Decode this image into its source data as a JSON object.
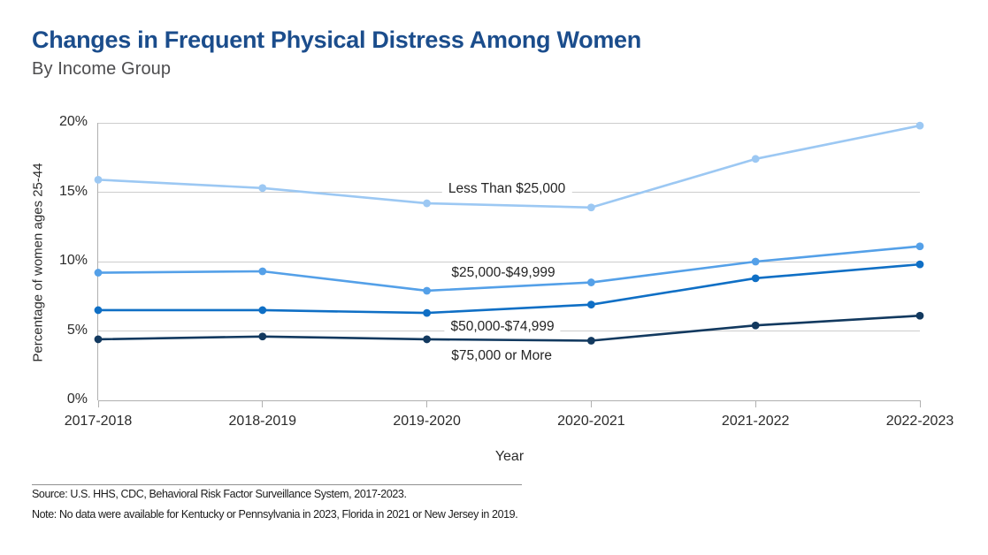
{
  "header": {
    "title": "Changes in Frequent Physical Distress Among Women",
    "subtitle": "By Income Group"
  },
  "chart_data": {
    "type": "line",
    "title": "Changes in Frequent Physical Distress Among Women",
    "subtitle": "By Income Group",
    "categories": [
      "2017-2018",
      "2018-2019",
      "2019-2020",
      "2020-2021",
      "2021-2022",
      "2022-2023"
    ],
    "series": [
      {
        "name": "Less Than $25,000",
        "color": "#9cc8f3",
        "values": [
          15.9,
          15.3,
          14.2,
          13.9,
          17.4,
          19.8
        ]
      },
      {
        "name": "$25,000-$49,999",
        "color": "#54a0e8",
        "values": [
          9.2,
          9.3,
          7.9,
          8.5,
          10.0,
          11.1
        ]
      },
      {
        "name": "$50,000-$74,999",
        "color": "#0f6fc5",
        "values": [
          6.5,
          6.5,
          6.3,
          6.9,
          8.8,
          9.8
        ]
      },
      {
        "name": "$75,000 or More",
        "color": "#12395f",
        "values": [
          4.4,
          4.6,
          4.4,
          4.3,
          5.4,
          6.1
        ]
      }
    ],
    "annotations": [
      {
        "text": "Less Than $25,000",
        "x": 2.487,
        "y": 15.2
      },
      {
        "text": "$25,000-$49,999",
        "x": 2.465,
        "y": 9.15
      },
      {
        "text": "$50,000-$74,999",
        "x": 2.46,
        "y": 5.3
      },
      {
        "text": "$75,000 or More",
        "x": 2.455,
        "y": 3.2
      }
    ],
    "xlabel": "Year",
    "ylabel": "Percentage of women ages 25-44",
    "ylim": [
      0,
      20
    ],
    "yticks": [
      0,
      5,
      10,
      15,
      20
    ],
    "ytick_labels": [
      "0%",
      "5%",
      "10%",
      "15%",
      "20%"
    ],
    "grid": true,
    "legend_position": "inline-annotations"
  },
  "footer": {
    "source": "Source: U.S. HHS, CDC, Behavioral Risk Factor Surveillance System, 2017-2023.",
    "note": "Note: No data were available for Kentucky or Pennsylvania in 2023, Florida in 2021 or New Jersey in 2019."
  }
}
